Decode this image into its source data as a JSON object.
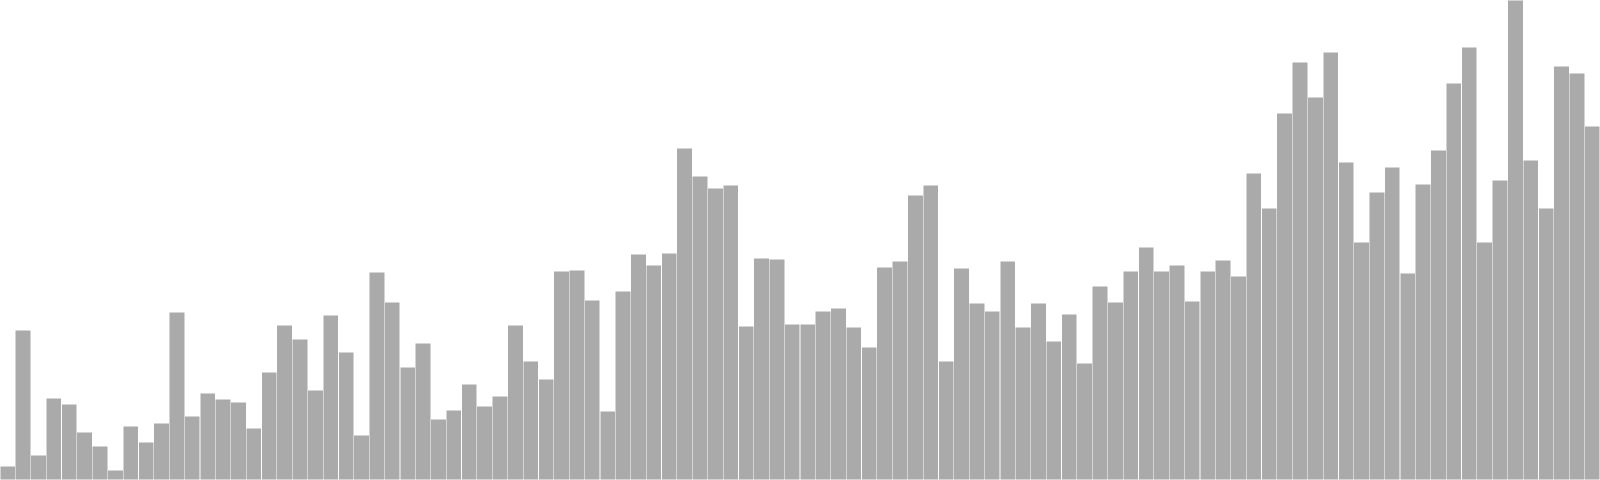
{
  "chart_data": {
    "type": "bar",
    "title": "",
    "xlabel": "",
    "ylabel": "",
    "ylim": [
      0,
      480
    ],
    "grid": false,
    "legend": "none",
    "bar_color": "#aaaaaa",
    "bar_edge_color": "#ffffff",
    "background": "#ffffff",
    "values": [
      14,
      150,
      25,
      82,
      76,
      48,
      34,
      10,
      54,
      38,
      57,
      168,
      64,
      87,
      81,
      78,
      52,
      108,
      155,
      141,
      90,
      165,
      128,
      45,
      208,
      178,
      113,
      137,
      61,
      70,
      96,
      74,
      84,
      155,
      119,
      101,
      209,
      210,
      180,
      69,
      189,
      226,
      215,
      227,
      332,
      304,
      292,
      295,
      154,
      222,
      221,
      156,
      156,
      169,
      172,
      153,
      133,
      213,
      219,
      285,
      295,
      119,
      212,
      177,
      169,
      219,
      153,
      177,
      139,
      166,
      117,
      194,
      178,
      209,
      233,
      209,
      215,
      179,
      209,
      220,
      204,
      307,
      272,
      367,
      418,
      383,
      428,
      318,
      238,
      288,
      313,
      207,
      296,
      330,
      397,
      433,
      238,
      300,
      480,
      320,
      272,
      414,
      407,
      354
    ]
  }
}
